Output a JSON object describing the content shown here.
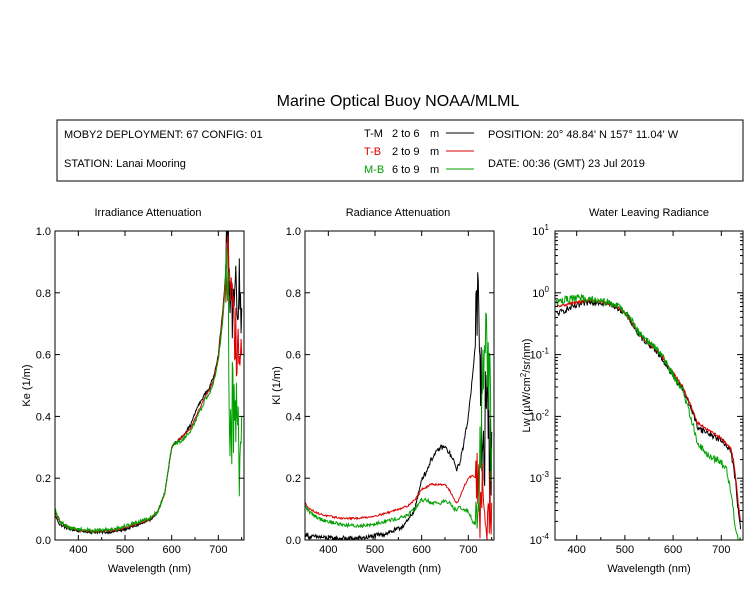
{
  "title": "Marine Optical Buoy NOAA/MLML",
  "header": {
    "deployment": "MOBY2 DEPLOYMENT: 67 CONFIG: 01",
    "station": "STATION: Lanai Mooring",
    "position": "POSITION: 20° 48.84' N   157° 11.04' W",
    "date": "DATE: 00:36 (GMT) 23 Jul 2019"
  },
  "legend": [
    {
      "code": "T-M",
      "range": "2 to 6",
      "unit": "m",
      "color": "#000000"
    },
    {
      "code": "T-B",
      "range": "2 to 9",
      "unit": "m",
      "color": "#dd0000"
    },
    {
      "code": "M-B",
      "range": "6 to 9",
      "unit": "m",
      "color": "#00a000"
    }
  ],
  "chart_data": [
    {
      "type": "line",
      "title": "Irradiance Attenuation",
      "xlabel": "Wavelength (nm)",
      "ylabel": "Ke  (1/m)",
      "xlim": [
        350,
        755
      ],
      "ylim": [
        0,
        1.0
      ],
      "xticks": [
        "400",
        "500",
        "600",
        "700"
      ],
      "yticks": [
        "0.0",
        "0.2",
        "0.4",
        "0.6",
        "0.8",
        "1.0"
      ],
      "yscale": "linear",
      "series": [
        {
          "name": "T-M",
          "color": "#000000",
          "noise": 0.004,
          "x": [
            350,
            360,
            380,
            400,
            430,
            460,
            490,
            520,
            550,
            570,
            585,
            595,
            600,
            605,
            620,
            640,
            655,
            665,
            670,
            680,
            690,
            700,
            710,
            715,
            720,
            725,
            730,
            735,
            740,
            745,
            750
          ],
          "y": [
            0.08,
            0.05,
            0.035,
            0.03,
            0.025,
            0.025,
            0.03,
            0.045,
            0.06,
            0.09,
            0.15,
            0.25,
            0.3,
            0.31,
            0.33,
            0.37,
            0.43,
            0.455,
            0.47,
            0.49,
            0.53,
            0.6,
            0.75,
            0.85,
            0.96,
            0.85,
            0.75,
            0.8,
            0.85,
            0.8,
            0.75
          ]
        },
        {
          "name": "T-B",
          "color": "#dd0000",
          "noise": 0.003,
          "x": [
            350,
            360,
            380,
            400,
            430,
            460,
            490,
            520,
            550,
            570,
            585,
            595,
            600,
            605,
            620,
            640,
            655,
            665,
            670,
            680,
            690,
            700,
            710,
            715,
            720,
            725,
            730,
            735,
            740,
            745,
            750
          ],
          "y": [
            0.09,
            0.06,
            0.04,
            0.032,
            0.028,
            0.03,
            0.035,
            0.05,
            0.065,
            0.09,
            0.15,
            0.25,
            0.3,
            0.31,
            0.33,
            0.36,
            0.41,
            0.44,
            0.46,
            0.48,
            0.52,
            0.59,
            0.74,
            0.84,
            0.9,
            0.78,
            0.72,
            0.68,
            0.62,
            0.6,
            0.6
          ]
        },
        {
          "name": "M-B",
          "color": "#00a000",
          "noise": 0.006,
          "x": [
            350,
            360,
            380,
            400,
            430,
            460,
            490,
            520,
            550,
            570,
            585,
            595,
            600,
            605,
            620,
            640,
            655,
            665,
            670,
            680,
            690,
            700,
            710,
            715,
            720,
            725,
            730,
            735,
            740,
            745,
            750
          ],
          "y": [
            0.1,
            0.06,
            0.04,
            0.035,
            0.03,
            0.033,
            0.04,
            0.055,
            0.07,
            0.09,
            0.15,
            0.25,
            0.3,
            0.31,
            0.32,
            0.35,
            0.4,
            0.43,
            0.45,
            0.47,
            0.51,
            0.58,
            0.72,
            0.83,
            0.88,
            0.3,
            0.45,
            0.35,
            0.5,
            0.3,
            0.4
          ]
        }
      ]
    },
    {
      "type": "line",
      "title": "Radiance Attenuation",
      "xlabel": "Wavelength (nm)",
      "ylabel": "Kl  (1/m)",
      "xlim": [
        350,
        755
      ],
      "ylim": [
        0,
        1.0
      ],
      "xticks": [
        "400",
        "500",
        "600",
        "700"
      ],
      "yticks": [
        "0.0",
        "0.2",
        "0.4",
        "0.6",
        "0.8",
        "1.0"
      ],
      "yscale": "linear",
      "series": [
        {
          "name": "T-M",
          "color": "#000000",
          "noise": 0.008,
          "x": [
            350,
            360,
            380,
            400,
            430,
            460,
            490,
            520,
            550,
            570,
            585,
            595,
            600,
            610,
            620,
            640,
            650,
            660,
            670,
            675,
            680,
            690,
            700,
            710,
            715,
            720,
            725,
            730,
            740,
            745,
            750
          ],
          "y": [
            0.02,
            0.01,
            0.01,
            0.005,
            0.005,
            0.005,
            0.01,
            0.02,
            0.035,
            0.06,
            0.1,
            0.16,
            0.2,
            0.22,
            0.26,
            0.3,
            0.3,
            0.28,
            0.25,
            0.23,
            0.24,
            0.31,
            0.4,
            0.55,
            0.63,
            0.73,
            0.62,
            0.3,
            0.4,
            0.3,
            0.35
          ]
        },
        {
          "name": "T-B",
          "color": "#dd0000",
          "noise": 0.003,
          "x": [
            350,
            360,
            380,
            400,
            430,
            460,
            490,
            520,
            550,
            570,
            585,
            595,
            600,
            610,
            620,
            640,
            650,
            660,
            670,
            675,
            680,
            690,
            700,
            710,
            715,
            720,
            725,
            730,
            740,
            745,
            750
          ],
          "y": [
            0.12,
            0.1,
            0.085,
            0.077,
            0.07,
            0.07,
            0.075,
            0.085,
            0.1,
            0.11,
            0.13,
            0.15,
            0.165,
            0.17,
            0.18,
            0.18,
            0.18,
            0.16,
            0.13,
            0.12,
            0.13,
            0.17,
            0.2,
            0.21,
            0.2,
            0.18,
            0.1,
            0.15,
            0.1,
            0.12,
            0.12
          ]
        },
        {
          "name": "M-B",
          "color": "#00a000",
          "noise": 0.006,
          "x": [
            350,
            360,
            380,
            400,
            430,
            460,
            490,
            520,
            550,
            570,
            585,
            595,
            600,
            610,
            620,
            640,
            650,
            660,
            670,
            675,
            680,
            690,
            700,
            710,
            715,
            720,
            725,
            730,
            740,
            745,
            750
          ],
          "y": [
            0.11,
            0.09,
            0.07,
            0.06,
            0.05,
            0.045,
            0.05,
            0.06,
            0.07,
            0.08,
            0.1,
            0.12,
            0.13,
            0.13,
            0.12,
            0.12,
            0.125,
            0.12,
            0.1,
            0.1,
            0.11,
            0.1,
            0.09,
            0.06,
            0.05,
            0.04,
            0.3,
            0.5,
            0.7,
            0.5,
            0.3
          ]
        }
      ]
    },
    {
      "type": "line",
      "title": "Water Leaving Radiance",
      "xlabel": "Wavelength (nm)",
      "ylabel": "Lw  (µW/cm²/sr/nm)",
      "xlim": [
        355,
        745
      ],
      "ylim": [
        0.0001,
        10
      ],
      "xticks": [
        "400",
        "500",
        "600",
        "700"
      ],
      "yticks": [
        "10^-4",
        "10^-3",
        "10^-2",
        "10^-1",
        "10^0",
        "10^1"
      ],
      "yscale": "log",
      "series": [
        {
          "name": "T-M",
          "color": "#000000",
          "noise": 0.05,
          "x": [
            358,
            370,
            390,
            410,
            430,
            450,
            470,
            490,
            510,
            530,
            545,
            560,
            575,
            590,
            605,
            620,
            640,
            650,
            660,
            670,
            680,
            690,
            700,
            710,
            720,
            725,
            730,
            735,
            740
          ],
          "y": [
            0.45,
            0.5,
            0.58,
            0.65,
            0.72,
            0.7,
            0.65,
            0.55,
            0.37,
            0.2,
            0.16,
            0.13,
            0.09,
            0.06,
            0.04,
            0.028,
            0.012,
            0.007,
            0.006,
            0.0055,
            0.005,
            0.0045,
            0.004,
            0.0035,
            0.0028,
            0.0015,
            0.0008,
            0.0003,
            0.00015
          ]
        },
        {
          "name": "T-B",
          "color": "#dd0000",
          "noise": 0.02,
          "x": [
            358,
            370,
            390,
            410,
            430,
            450,
            470,
            490,
            510,
            530,
            545,
            560,
            575,
            590,
            605,
            620,
            640,
            650,
            660,
            670,
            680,
            690,
            700,
            710,
            720,
            725,
            730,
            735,
            740
          ],
          "y": [
            0.6,
            0.62,
            0.68,
            0.72,
            0.76,
            0.72,
            0.66,
            0.56,
            0.38,
            0.21,
            0.16,
            0.13,
            0.1,
            0.065,
            0.045,
            0.03,
            0.013,
            0.008,
            0.007,
            0.0062,
            0.0055,
            0.005,
            0.0044,
            0.0037,
            0.003,
            0.002,
            0.001,
            0.0004,
            0.0002
          ]
        },
        {
          "name": "M-B",
          "color": "#00a000",
          "noise": 0.06,
          "x": [
            358,
            370,
            390,
            410,
            430,
            450,
            470,
            490,
            510,
            530,
            545,
            560,
            575,
            590,
            605,
            620,
            640,
            650,
            660,
            670,
            680,
            690,
            700,
            710,
            720,
            725,
            730,
            735,
            740
          ],
          "y": [
            0.7,
            0.75,
            0.8,
            0.82,
            0.8,
            0.75,
            0.68,
            0.58,
            0.4,
            0.22,
            0.17,
            0.14,
            0.1,
            0.065,
            0.04,
            0.026,
            0.008,
            0.004,
            0.003,
            0.0025,
            0.0022,
            0.002,
            0.0018,
            0.0015,
            0.0006,
            0.0003,
            0.00015,
            0.0001,
            0.0001
          ]
        }
      ]
    }
  ]
}
